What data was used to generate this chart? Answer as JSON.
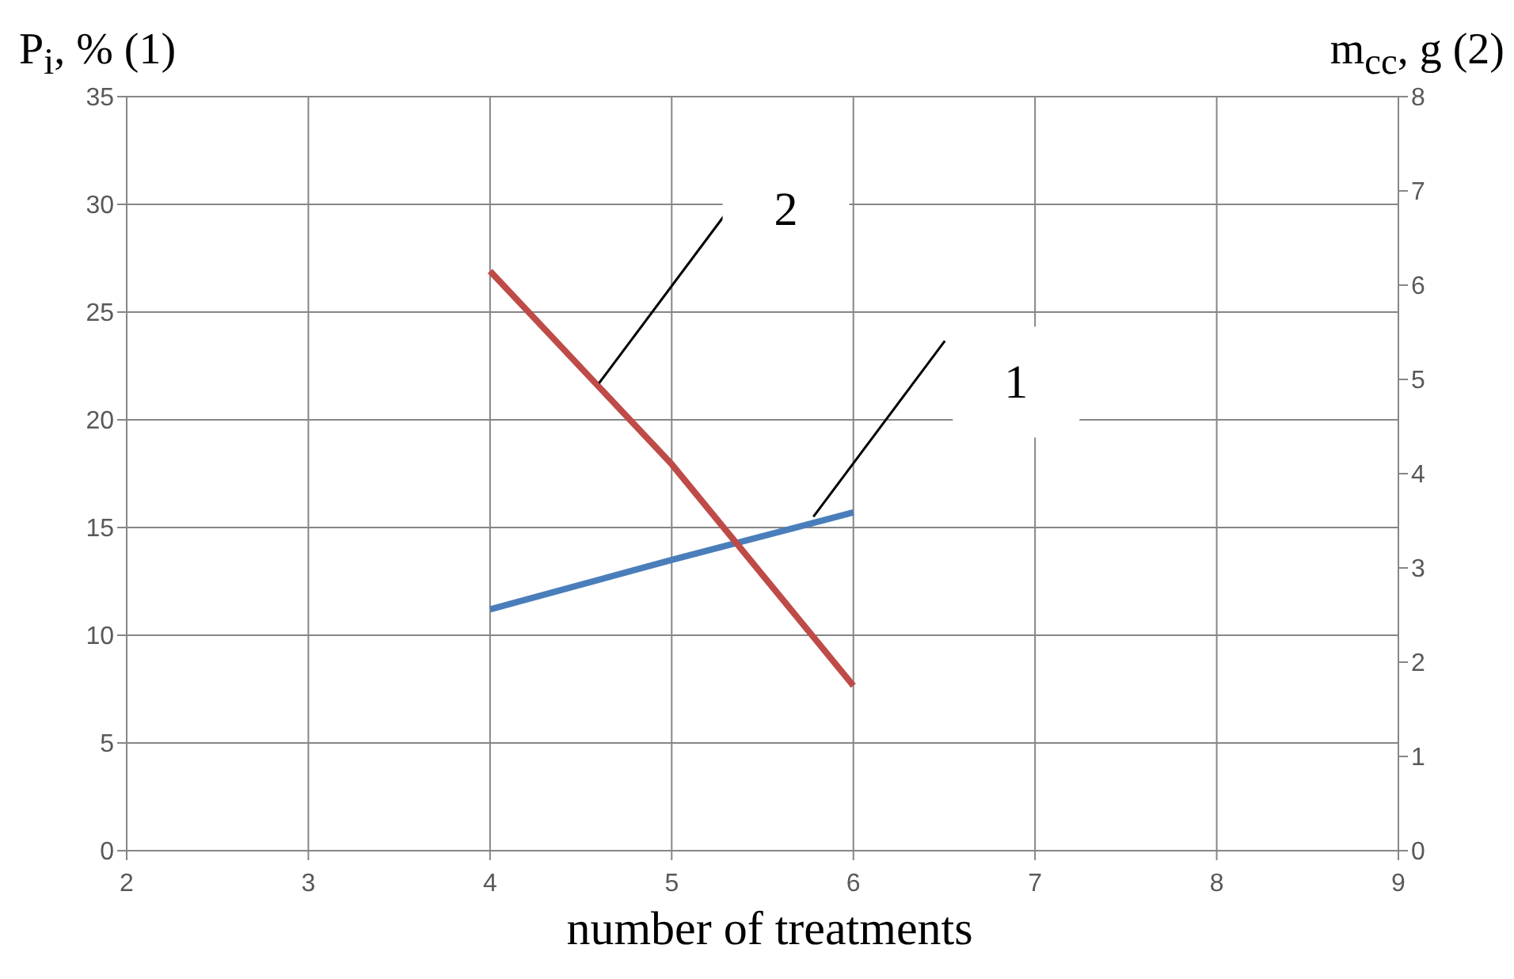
{
  "chart_data": {
    "type": "line",
    "xlabel": "number of treatments",
    "ylabel": "P$_{i}$, % (1)",
    "y2label": "m$_{cc}$, g (2)",
    "x": [
      4,
      5,
      6
    ],
    "series": [
      {
        "color": "#4a7ebb",
        "values": [
          11.2,
          13.5,
          15.7
        ]
      },
      {
        "color": "#be4b48",
        "values": [
          6.15,
          4.1,
          1.75
        ],
        "axis": "y2"
      }
    ],
    "xlim": [
      2,
      9
    ],
    "xticks": [
      2,
      3,
      4,
      5,
      6,
      7,
      8,
      9
    ],
    "ylim": [
      0,
      35
    ],
    "yticks": [
      0,
      5,
      10,
      15,
      20,
      25,
      30,
      35
    ],
    "y2lim": [
      0,
      8
    ],
    "y2ticks": [
      0,
      1,
      2,
      3,
      4,
      5,
      6,
      7,
      8
    ],
    "annotations": [
      {
        "text": "2",
        "x": 4.6,
        "y": 21.7
      },
      {
        "text": "1",
        "x": 5.78,
        "y": 15.5
      }
    ],
    "grid": true,
    "marker": "none",
    "line_style": "solid"
  }
}
